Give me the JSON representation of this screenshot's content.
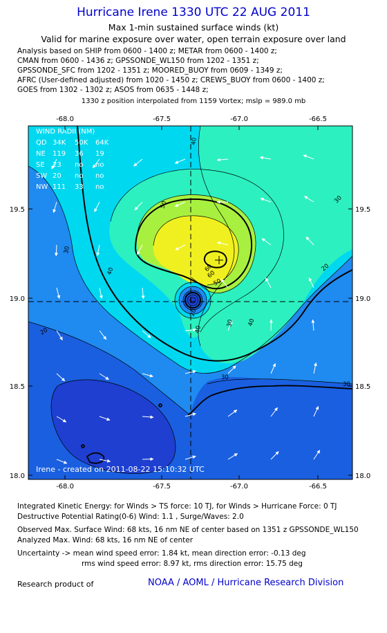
{
  "header": {
    "title": "Hurricane Irene 1330 UTC 22 AUG 2011",
    "subtitle1": "Max 1-min sustained surface winds (kt)",
    "subtitle2": "Valid for marine exposure over water, open terrain exposure over land"
  },
  "sources": [
    "Analysis based on SHIP from 0600 - 1400 z; METAR from 0600 - 1400 z;",
    "CMAN from 0600 - 1436 z; GPSSONDE_WL150 from 1202 - 1351 z;",
    "GPSSONDE_SFC from 1202 - 1351 z; MOORED_BUOY from 0609 - 1349 z;",
    "AFRC (User-defined adjusted) from 1020 - 1450 z; CREWS_BUOY from 0600 - 1400 z;",
    "GOES from 1302 - 1302 z; ASOS from 0635 - 1448 z;"
  ],
  "vortex_note": "1330 z position interpolated from 1159 Vortex; mslp = 989.0 mb",
  "map": {
    "lon_ticks": [
      "-68.0",
      "-67.5",
      "-67.0",
      "-66.5"
    ],
    "lat_ticks": [
      "19.5",
      "19.0",
      "18.5",
      "18.0"
    ],
    "center_lon": -67.28,
    "center_lat": 18.96,
    "credit": "Irene - created on 2011-08-22 15:10:32 UTC",
    "contour_labels": [
      "40",
      "50",
      "60",
      "50",
      "40",
      "30",
      "40",
      "30",
      "20",
      "30",
      "40",
      "20",
      "30",
      "20",
      "30",
      "60"
    ],
    "wind_radii": {
      "title": "WIND RADII (NM)",
      "header": [
        "QD",
        "34K",
        "50K",
        "64K"
      ],
      "rows": [
        [
          "NE",
          "119",
          "36",
          "19"
        ],
        [
          "SE",
          "23",
          "no",
          "no"
        ],
        [
          "SW",
          "20",
          "no",
          "no"
        ],
        [
          "NW",
          "111",
          "33",
          "no"
        ]
      ]
    }
  },
  "footer": {
    "ike": "Integrated Kinetic Energy:  for Winds > TS force: 10 TJ,  for Winds > Hurricane Force: 0 TJ",
    "dpr": "Destructive Potential Rating(0-6)   Wind: 1.1 , Surge/Waves: 2.0",
    "observed": "Observed Max. Surface Wind: 68 kts, 16 nm NE of center based on 1351 z GPSSONDE_WL150",
    "analyzed": "Analyzed Max. Wind: 68 kts, 16 nm NE of center",
    "uncert1": "Uncertainty -> mean wind speed error: 1.84 kt,   mean direction error:  -0.13 deg",
    "uncert2": "rms wind speed error: 8.97 kt,   rms direction error: 15.75 deg",
    "research": "Research product of",
    "org": "NOAA / AOML / Hurricane Research Division"
  },
  "colors": {
    "c20": "#1a5fe0",
    "c10": "#1e3fd0",
    "c30": "#1f8af0",
    "c40": "#00d8f0",
    "c50": "#2cf0c0",
    "c60": "#a8f040",
    "c70": "#f0f020",
    "title": "#0000cc"
  }
}
